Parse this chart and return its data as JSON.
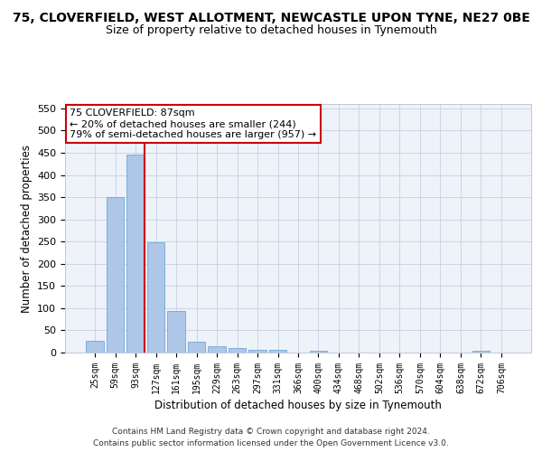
{
  "title": "75, CLOVERFIELD, WEST ALLOTMENT, NEWCASTLE UPON TYNE, NE27 0BE",
  "subtitle": "Size of property relative to detached houses in Tynemouth",
  "xlabel": "Distribution of detached houses by size in Tynemouth",
  "ylabel": "Number of detached properties",
  "bar_color": "#aec6e8",
  "bar_edge_color": "#5a9fd4",
  "categories": [
    "25sqm",
    "59sqm",
    "93sqm",
    "127sqm",
    "161sqm",
    "195sqm",
    "229sqm",
    "263sqm",
    "297sqm",
    "331sqm",
    "366sqm",
    "400sqm",
    "434sqm",
    "468sqm",
    "502sqm",
    "536sqm",
    "570sqm",
    "604sqm",
    "638sqm",
    "672sqm",
    "706sqm"
  ],
  "values": [
    27,
    350,
    445,
    248,
    93,
    24,
    14,
    11,
    7,
    6,
    0,
    5,
    0,
    0,
    0,
    0,
    0,
    0,
    0,
    5,
    0
  ],
  "ylim": [
    0,
    560
  ],
  "yticks": [
    0,
    50,
    100,
    150,
    200,
    250,
    300,
    350,
    400,
    450,
    500,
    550
  ],
  "marker_bin_index": 2,
  "marker_color": "#cc0000",
  "annotation_text": "75 CLOVERFIELD: 87sqm\n← 20% of detached houses are smaller (244)\n79% of semi-detached houses are larger (957) →",
  "annotation_box_color": "#ffffff",
  "annotation_box_edge": "#cc0000",
  "footer_line1": "Contains HM Land Registry data © Crown copyright and database right 2024.",
  "footer_line2": "Contains public sector information licensed under the Open Government Licence v3.0.",
  "bg_color": "#eef2f9",
  "title_fontsize": 10,
  "subtitle_fontsize": 9
}
